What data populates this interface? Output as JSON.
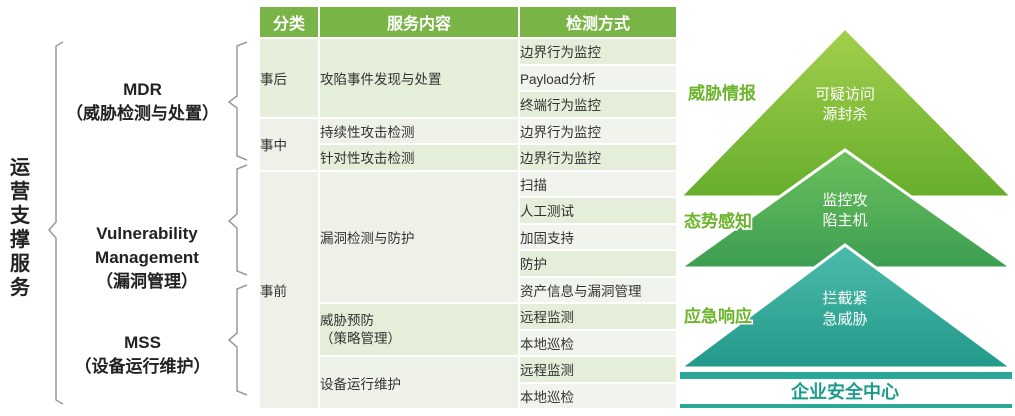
{
  "side_title": "运营支撑服务",
  "groups": {
    "mdr": {
      "title": "MDR",
      "subtitle": "（威胁检测与处置）"
    },
    "vulnerability": {
      "title_line1": "Vulnerability",
      "title_line2": "Management",
      "subtitle": "（漏洞管理）"
    },
    "mss": {
      "title": "MSS",
      "subtitle": "（设备运行维护）"
    }
  },
  "table": {
    "headers": {
      "category": "分类",
      "content": "服务内容",
      "method": "检测方式"
    },
    "categories": [
      "事后",
      "事中",
      "事前"
    ],
    "contents": {
      "c0": "攻陷事件发现与处置",
      "c1": "持续性攻击检测",
      "c2": "针对性攻击检测",
      "c3": "漏洞检测与防护",
      "c4_line1": "威胁预防",
      "c4_line2": "（策略管理）",
      "c5": "设备运行维护"
    },
    "methods": [
      "边界行为监控",
      "Payload分析",
      "终端行为监控",
      "边界行为监控",
      "边界行为监控",
      "扫描",
      "人工测试",
      "加固支持",
      "防护",
      "资产信息与漏洞管理",
      "远程监测",
      "本地巡检",
      "远程监测",
      "本地巡检"
    ]
  },
  "pyramid": {
    "levels": [
      {
        "label": "威胁情报",
        "inner_line1": "可疑访问",
        "inner_line2": "源封杀"
      },
      {
        "label": "态势感知",
        "inner_line1": "监控攻",
        "inner_line2": "陷主机"
      },
      {
        "label": "应急响应",
        "inner_line1": "拦截紧",
        "inner_line2": "急威胁"
      }
    ],
    "base": "企业安全中心"
  },
  "colors": {
    "header_green": "#78b446",
    "label_green": "#6db42d",
    "level1": "#7fbd35",
    "level2": "#45a656",
    "level3": "#2aa99a",
    "base_teal": "#1d9c8c"
  }
}
